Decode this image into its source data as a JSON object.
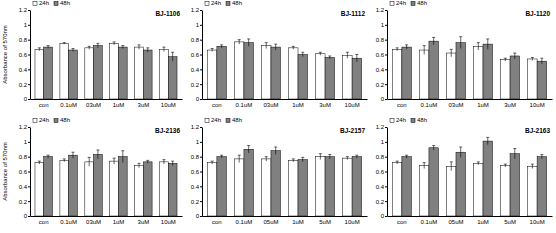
{
  "chart_data": [
    {
      "type": "bar",
      "title": "BJ-1106",
      "y_label": "Absorbance of 570nm",
      "legend": "upper left",
      "categories": [
        "con",
        "0.1uM",
        "03uM",
        "1uM",
        "3uM",
        "10uM"
      ],
      "series": [
        {
          "name": "24h",
          "color": "#ffffff",
          "values": [
            0.67,
            0.75,
            0.69,
            0.75,
            0.7,
            0.67
          ],
          "errors": [
            0.02,
            0.01,
            0.02,
            0.02,
            0.03,
            0.03
          ]
        },
        {
          "name": "48h",
          "color": "#808080",
          "values": [
            0.7,
            0.66,
            0.72,
            0.7,
            0.66,
            0.57
          ],
          "errors": [
            0.02,
            0.02,
            0.03,
            0.02,
            0.03,
            0.06
          ]
        }
      ],
      "ylim": [
        0,
        1.2
      ],
      "yticks": [
        0,
        0.2,
        0.4,
        0.6,
        0.8,
        1,
        1.2
      ]
    },
    {
      "type": "bar",
      "title": "BJ-1112",
      "legend": "upper left",
      "categories": [
        "con",
        "0.1uM",
        "03uM",
        "1uM",
        "3uM",
        "10uM"
      ],
      "series": [
        {
          "name": "24h",
          "color": "#ffffff",
          "values": [
            0.66,
            0.77,
            0.72,
            0.69,
            0.61,
            0.59
          ],
          "errors": [
            0.02,
            0.03,
            0.04,
            0.02,
            0.02,
            0.04
          ]
        },
        {
          "name": "48h",
          "color": "#808080",
          "values": [
            0.71,
            0.76,
            0.7,
            0.6,
            0.56,
            0.55
          ],
          "errors": [
            0.02,
            0.05,
            0.04,
            0.03,
            0.02,
            0.05
          ]
        }
      ],
      "ylim": [
        0,
        1.2
      ],
      "yticks": [
        0,
        0.2,
        0.4,
        0.6,
        0.8,
        1,
        1.2
      ]
    },
    {
      "type": "bar",
      "title": "BJ-1120",
      "legend": "upper left",
      "categories": [
        "con",
        "0.1uM",
        "03uM",
        "1uM",
        "3uM",
        "10uM"
      ],
      "series": [
        {
          "name": "24h",
          "color": "#ffffff",
          "values": [
            0.67,
            0.66,
            0.62,
            0.71,
            0.53,
            0.54
          ],
          "errors": [
            0.02,
            0.06,
            0.05,
            0.05,
            0.02,
            0.02
          ]
        },
        {
          "name": "48h",
          "color": "#808080",
          "values": [
            0.7,
            0.78,
            0.76,
            0.74,
            0.58,
            0.51
          ],
          "errors": [
            0.03,
            0.05,
            0.08,
            0.07,
            0.04,
            0.04
          ]
        }
      ],
      "ylim": [
        0,
        1.2
      ],
      "yticks": [
        0,
        0.2,
        0.4,
        0.6,
        0.8,
        1,
        1.2
      ]
    },
    {
      "type": "bar",
      "title": "BJ-2136",
      "y_label": "Absorbance of 570nm",
      "legend": "upper left",
      "categories": [
        "con",
        "0.1uM",
        "03uM",
        "1uM",
        "3uM",
        "10uM"
      ],
      "series": [
        {
          "name": "24h",
          "color": "#ffffff",
          "values": [
            0.72,
            0.75,
            0.73,
            0.74,
            0.68,
            0.73
          ],
          "errors": [
            0.02,
            0.02,
            0.06,
            0.04,
            0.03,
            0.03
          ]
        },
        {
          "name": "48h",
          "color": "#808080",
          "values": [
            0.8,
            0.82,
            0.83,
            0.8,
            0.73,
            0.71
          ],
          "errors": [
            0.02,
            0.04,
            0.06,
            0.08,
            0.02,
            0.03
          ]
        }
      ],
      "ylim": [
        0,
        1.2
      ],
      "yticks": [
        0,
        0.2,
        0.4,
        0.6,
        0.8,
        1,
        1.2
      ]
    },
    {
      "type": "bar",
      "title": "BJ-2157",
      "legend": "upper left",
      "categories": [
        "con",
        "0.1uM",
        "05uM",
        "1uM",
        "5uM",
        "10uM"
      ],
      "series": [
        {
          "name": "24h",
          "color": "#ffffff",
          "values": [
            0.72,
            0.77,
            0.77,
            0.75,
            0.8,
            0.78
          ],
          "errors": [
            0.02,
            0.05,
            0.03,
            0.02,
            0.04,
            0.02
          ]
        },
        {
          "name": "48h",
          "color": "#808080",
          "values": [
            0.8,
            0.9,
            0.88,
            0.76,
            0.8,
            0.8
          ],
          "errors": [
            0.02,
            0.05,
            0.05,
            0.03,
            0.03,
            0.02
          ]
        }
      ],
      "ylim": [
        0,
        1.2
      ],
      "yticks": [
        0,
        0.2,
        0.4,
        0.6,
        0.8,
        1,
        1.2
      ]
    },
    {
      "type": "bar",
      "title": "BJ-2163",
      "legend": "upper left",
      "categories": [
        "con",
        "0.1uM",
        "05uM",
        "1uM",
        "5uM",
        "10uM"
      ],
      "series": [
        {
          "name": "24h",
          "color": "#ffffff",
          "values": [
            0.72,
            0.68,
            0.67,
            0.71,
            0.68,
            0.67
          ],
          "errors": [
            0.02,
            0.04,
            0.06,
            0.02,
            0.02,
            0.03
          ]
        },
        {
          "name": "48h",
          "color": "#808080",
          "values": [
            0.8,
            0.92,
            0.86,
            1.01,
            0.84,
            0.8
          ],
          "errors": [
            0.02,
            0.03,
            0.07,
            0.05,
            0.07,
            0.03
          ]
        }
      ],
      "ylim": [
        0,
        1.2
      ],
      "yticks": [
        0,
        0.2,
        0.4,
        0.6,
        0.8,
        1,
        1.2
      ]
    }
  ]
}
